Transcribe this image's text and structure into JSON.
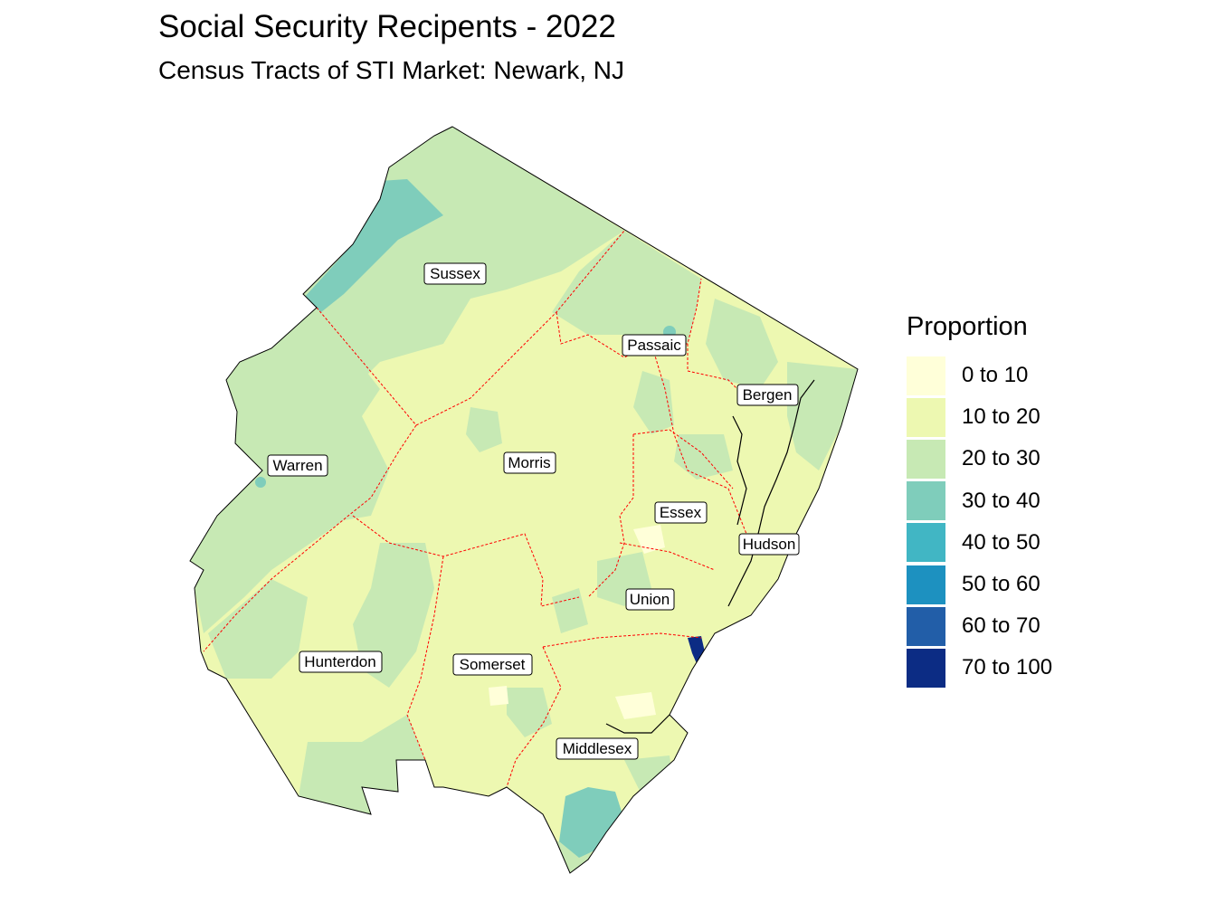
{
  "title": "Social Security Recipents - 2022",
  "subtitle": "Census Tracts of STI Market: Newark, NJ",
  "legend": {
    "title": "Proportion",
    "items": [
      {
        "label": "0 to 10",
        "color": "#ffffd9"
      },
      {
        "label": "10 to 20",
        "color": "#edf8b1"
      },
      {
        "label": "20 to 30",
        "color": "#c7e9b4"
      },
      {
        "label": "30 to 40",
        "color": "#7fcdbb"
      },
      {
        "label": "40 to 50",
        "color": "#41b6c4"
      },
      {
        "label": "50 to 60",
        "color": "#1d91c0"
      },
      {
        "label": "60 to 70",
        "color": "#225ea8"
      },
      {
        "label": "70 to 100",
        "color": "#0c2c84"
      }
    ]
  },
  "counties": [
    {
      "name": "Sussex"
    },
    {
      "name": "Passaic"
    },
    {
      "name": "Bergen"
    },
    {
      "name": "Warren"
    },
    {
      "name": "Morris"
    },
    {
      "name": "Essex"
    },
    {
      "name": "Hudson"
    },
    {
      "name": "Union"
    },
    {
      "name": "Hunterdon"
    },
    {
      "name": "Somerset"
    },
    {
      "name": "Middlesex"
    }
  ]
}
